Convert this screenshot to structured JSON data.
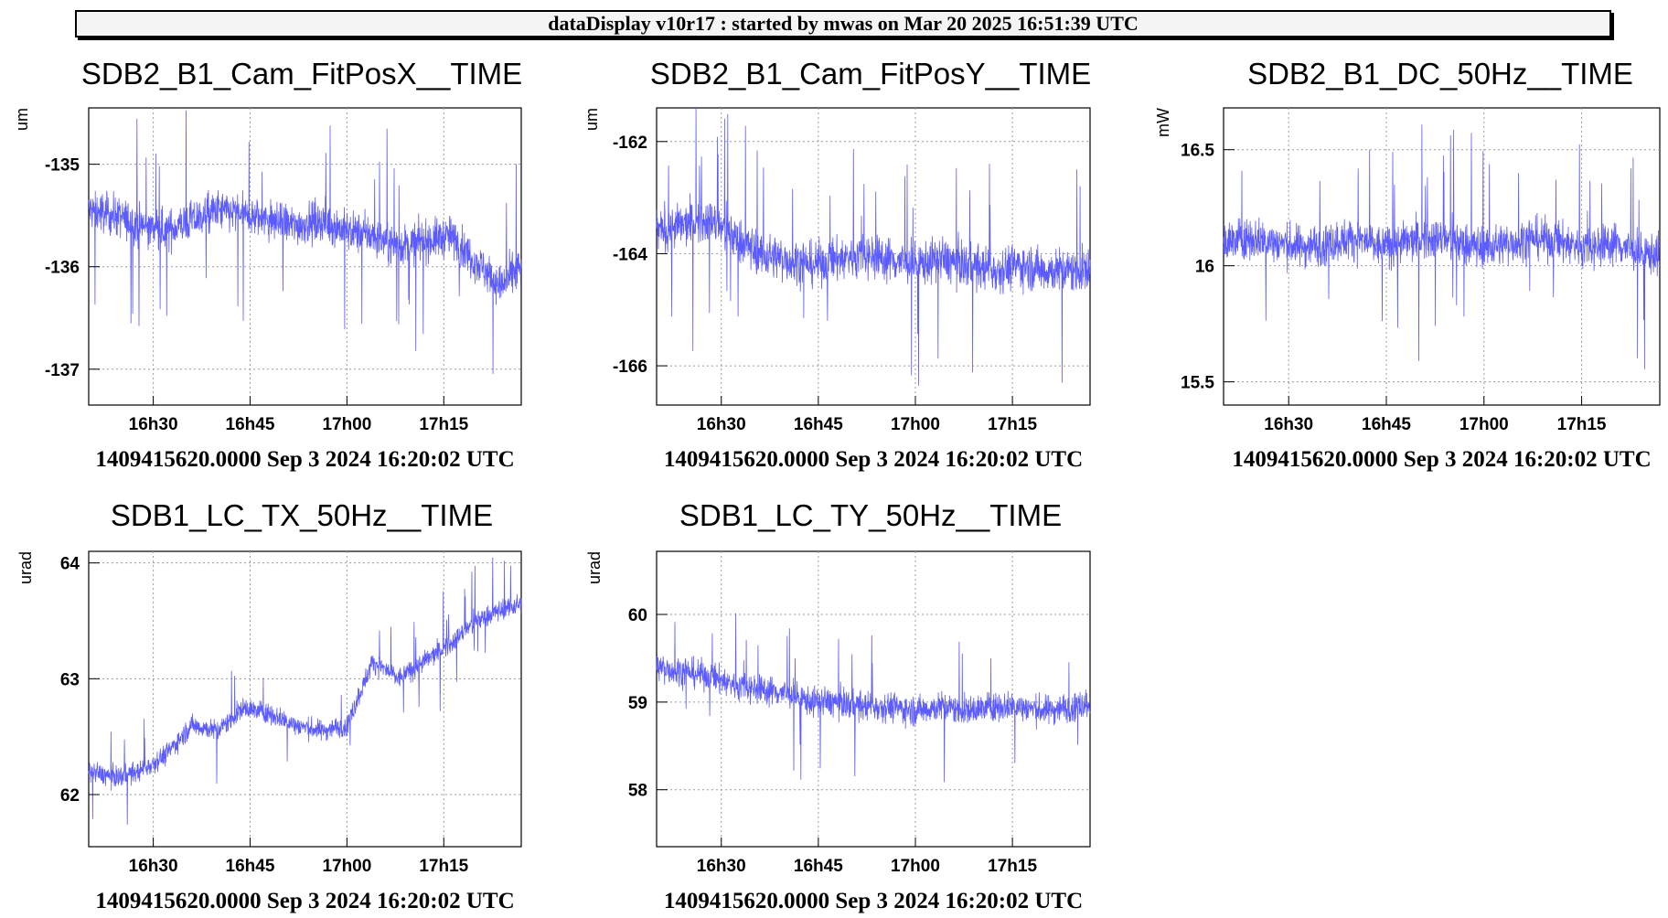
{
  "header": {
    "text": "dataDisplay v10r17 : started by mwas on Mar 20 2025 16:51:39 UTC"
  },
  "colors": {
    "trace": "#5b5bff",
    "grid": "#9a9a9a",
    "axis": "#000000",
    "background": "#ffffff"
  },
  "chart_data": [
    {
      "type": "line",
      "title": "SDB2_B1_Cam_FitPosX__TIME",
      "ylabel": "um",
      "footer": "1409415620.0000 Sep 3 2024 16:20:02 UTC",
      "xticks": [
        "16h30",
        "16h45",
        "17h00",
        "17h15"
      ],
      "xtick_minutes": [
        30,
        45,
        60,
        75
      ],
      "xlim_minutes": [
        20,
        87
      ],
      "yticks": [
        -135,
        -136,
        -137
      ],
      "ylim": [
        -137.35,
        -134.45
      ],
      "series": [
        {
          "x_minutes": [
            20,
            24,
            28,
            32,
            36,
            40,
            44,
            48,
            52,
            56,
            60,
            64,
            68,
            72,
            76,
            80,
            84,
            87
          ],
          "y": [
            -135.45,
            -135.5,
            -135.6,
            -135.65,
            -135.55,
            -135.45,
            -135.5,
            -135.55,
            -135.6,
            -135.55,
            -135.65,
            -135.7,
            -135.8,
            -135.75,
            -135.7,
            -135.95,
            -136.2,
            -136.0
          ],
          "band": 0.35
        }
      ]
    },
    {
      "type": "line",
      "title": "SDB2_B1_Cam_FitPosY__TIME",
      "ylabel": "um",
      "footer": "1409415620.0000 Sep 3 2024 16:20:02 UTC",
      "xticks": [
        "16h30",
        "16h45",
        "17h00",
        "17h15"
      ],
      "xtick_minutes": [
        30,
        45,
        60,
        75
      ],
      "xlim_minutes": [
        20,
        87
      ],
      "yticks": [
        -162,
        -164,
        -166
      ],
      "ylim": [
        -166.7,
        -161.4
      ],
      "series": [
        {
          "x_minutes": [
            20,
            24,
            28,
            32,
            36,
            40,
            44,
            48,
            52,
            56,
            60,
            64,
            68,
            72,
            76,
            80,
            84,
            87
          ],
          "y": [
            -163.6,
            -163.5,
            -163.4,
            -163.7,
            -164.0,
            -164.1,
            -164.2,
            -164.1,
            -164.0,
            -164.1,
            -164.2,
            -164.1,
            -164.2,
            -164.3,
            -164.2,
            -164.3,
            -164.3,
            -164.3
          ],
          "band": 0.7
        }
      ]
    },
    {
      "type": "line",
      "title": "SDB2_B1_DC_50Hz__TIME",
      "ylabel": "mW",
      "footer": "1409415620.0000 Sep 3 2024 16:20:02 UTC",
      "xticks": [
        "16h30",
        "16h45",
        "17h00",
        "17h15"
      ],
      "xtick_minutes": [
        30,
        45,
        60,
        75
      ],
      "xlim_minutes": [
        20,
        87
      ],
      "yticks": [
        16.5,
        16,
        15.5
      ],
      "ylim": [
        15.4,
        16.68
      ],
      "series": [
        {
          "x_minutes": [
            20,
            24,
            28,
            32,
            36,
            40,
            44,
            48,
            52,
            56,
            60,
            64,
            68,
            72,
            76,
            80,
            84,
            87
          ],
          "y": [
            16.1,
            16.12,
            16.1,
            16.08,
            16.1,
            16.12,
            16.08,
            16.1,
            16.12,
            16.1,
            16.08,
            16.1,
            16.12,
            16.1,
            16.08,
            16.1,
            16.05,
            16.05
          ],
          "band": 0.16
        }
      ]
    },
    {
      "type": "line",
      "title": "SDB1_LC_TX_50Hz__TIME",
      "ylabel": "urad",
      "footer": "1409415620.0000 Sep 3 2024 16:20:02 UTC",
      "xticks": [
        "16h30",
        "16h45",
        "17h00",
        "17h15"
      ],
      "xtick_minutes": [
        30,
        45,
        60,
        75
      ],
      "xlim_minutes": [
        20,
        87
      ],
      "yticks": [
        64,
        63,
        62
      ],
      "ylim": [
        61.55,
        64.1
      ],
      "series": [
        {
          "x_minutes": [
            20,
            24,
            28,
            32,
            36,
            40,
            44,
            48,
            52,
            56,
            60,
            64,
            68,
            72,
            76,
            80,
            84,
            87
          ],
          "y": [
            62.2,
            62.15,
            62.2,
            62.35,
            62.6,
            62.55,
            62.75,
            62.7,
            62.6,
            62.55,
            62.6,
            63.15,
            63.0,
            63.15,
            63.3,
            63.5,
            63.6,
            63.65
          ],
          "band": 0.16
        }
      ]
    },
    {
      "type": "line",
      "title": "SDB1_LC_TY_50Hz__TIME",
      "ylabel": "urad",
      "footer": "1409415620.0000 Sep 3 2024 16:20:02 UTC",
      "xticks": [
        "16h30",
        "16h45",
        "17h00",
        "17h15"
      ],
      "xtick_minutes": [
        30,
        45,
        60,
        75
      ],
      "xtick_labels_shown": true,
      "xlim_minutes": [
        20,
        87
      ],
      "yticks": [
        60,
        59,
        58
      ],
      "ylim": [
        57.35,
        60.72
      ],
      "series": [
        {
          "x_minutes": [
            20,
            24,
            28,
            32,
            36,
            40,
            44,
            48,
            52,
            56,
            60,
            64,
            68,
            72,
            76,
            80,
            84,
            87
          ],
          "y": [
            59.4,
            59.35,
            59.3,
            59.2,
            59.15,
            59.1,
            59.0,
            59.0,
            58.95,
            58.95,
            58.9,
            58.95,
            58.9,
            58.95,
            58.95,
            58.9,
            58.95,
            59.0
          ],
          "band": 0.3
        }
      ]
    }
  ]
}
